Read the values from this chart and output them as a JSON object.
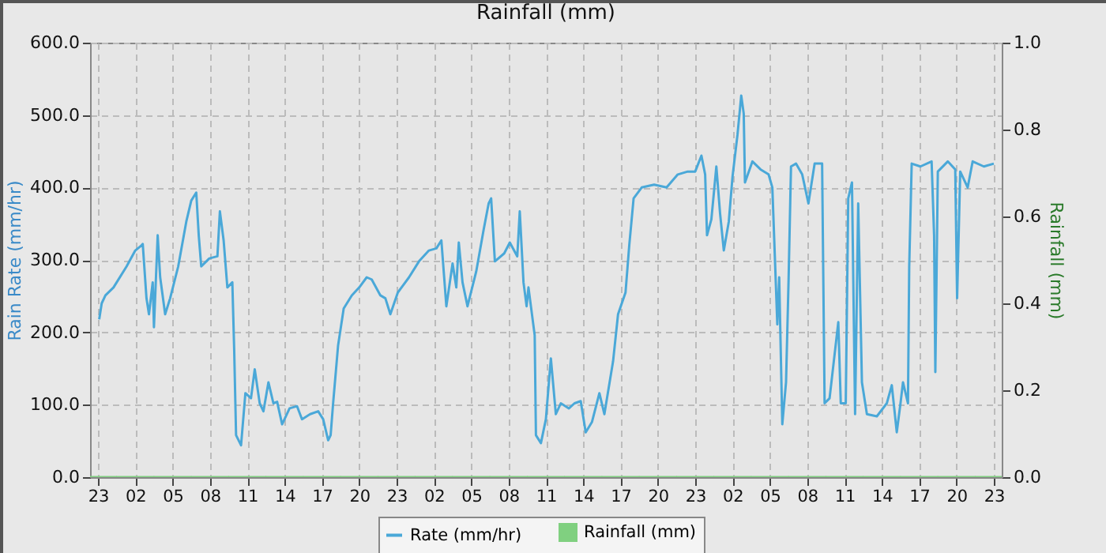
{
  "chart_data": {
    "type": "line",
    "title": "Rainfall (mm)",
    "ylabel": "Rain Rate (mm/hr)",
    "y2label": "Rainfall (mm)",
    "xlim": [
      "--01-01T23:00",
      "--01-04T23:00"
    ],
    "xticks": [
      {
        "value": "--01-01T23:00",
        "label": "23"
      },
      {
        "value": "--01-02T02:00",
        "label": "02"
      },
      {
        "value": "--01-02T05:00",
        "label": "05"
      },
      {
        "value": "--01-02T08:00",
        "label": "08"
      },
      {
        "value": "--01-02T11:00",
        "label": "11"
      },
      {
        "value": "--01-02T14:00",
        "label": "14"
      },
      {
        "value": "--01-02T17:00",
        "label": "17"
      },
      {
        "value": "--01-02T20:00",
        "label": "20"
      },
      {
        "value": "--01-02T23:00",
        "label": "23"
      },
      {
        "value": "--01-03T02:00",
        "label": "02"
      },
      {
        "value": "--01-03T05:00",
        "label": "05"
      },
      {
        "value": "--01-03T08:00",
        "label": "08"
      },
      {
        "value": "--01-03T11:00",
        "label": "11"
      },
      {
        "value": "--01-03T14:00",
        "label": "14"
      },
      {
        "value": "--01-03T17:00",
        "label": "17"
      },
      {
        "value": "--01-03T20:00",
        "label": "20"
      },
      {
        "value": "--01-03T23:00",
        "label": "23"
      },
      {
        "value": "--01-04T02:00",
        "label": "02"
      },
      {
        "value": "--01-04T05:00",
        "label": "05"
      },
      {
        "value": "--01-04T08:00",
        "label": "08"
      },
      {
        "value": "--01-04T11:00",
        "label": "11"
      },
      {
        "value": "--01-04T14:00",
        "label": "14"
      },
      {
        "value": "--01-04T17:00",
        "label": "17"
      },
      {
        "value": "--01-04T20:00",
        "label": "20"
      },
      {
        "value": "--01-04T23:00",
        "label": "23"
      }
    ],
    "ylim": [
      0,
      600
    ],
    "yticks": [
      {
        "value": 0,
        "label": "0.0"
      },
      {
        "value": 100,
        "label": "100.0"
      },
      {
        "value": 200,
        "label": "200.0"
      },
      {
        "value": 300,
        "label": "300.0"
      },
      {
        "value": 400,
        "label": "400.0"
      },
      {
        "value": 500,
        "label": "500.0"
      },
      {
        "value": 600,
        "label": "600.0"
      }
    ],
    "y2lim": [
      0,
      1
    ],
    "y2ticks": [
      {
        "value": 0,
        "label": "0.0"
      },
      {
        "value": 0.2,
        "label": "0.2"
      },
      {
        "value": 0.4,
        "label": "0.4"
      },
      {
        "value": 0.6,
        "label": "0.6"
      },
      {
        "value": 0.8,
        "label": "0.8"
      },
      {
        "value": 1,
        "label": "1.0"
      }
    ],
    "grid": true,
    "legend": "bottom",
    "marker": "none",
    "line_style": "solid",
    "series": [
      {
        "name": "Rate (mm/hr)",
        "color": "#4aa8d8",
        "x": [
          "--01-01T23:06",
          "--01-01T23:18",
          "--01-01T23:36",
          "--01-02T00:15",
          "--01-02T01:18",
          "--01-02T02:00",
          "--01-02T02:30",
          "--01-02T02:36",
          "--01-02T02:54",
          "--01-02T03:06",
          "--01-02T03:24",
          "--01-02T03:30",
          "--01-02T03:48",
          "--01-02T04:00",
          "--01-02T04:24",
          "--01-02T04:48",
          "--01-02T05:27",
          "--01-02T06:06",
          "--01-02T06:30",
          "--01-02T06:54",
          "--01-02T07:06",
          "--01-02T07:18",
          "--01-02T07:57",
          "--01-02T08:36",
          "--01-02T08:48",
          "--01-02T09:06",
          "--01-02T09:24",
          "--01-02T09:48",
          "--01-02T09:57",
          "--01-02T10:06",
          "--01-02T10:30",
          "--01-02T10:51",
          "--01-02T11:18",
          "--01-02T11:36",
          "--01-02T12:00",
          "--01-02T12:18",
          "--01-02T12:42",
          "--01-02T13:06",
          "--01-02T13:24",
          "--01-02T13:48",
          "--01-02T14:24",
          "--01-02T15:00",
          "--01-02T15:24",
          "--01-02T16:03",
          "--01-02T16:42",
          "--01-02T17:06",
          "--01-02T17:30",
          "--01-02T17:42",
          "--01-02T17:54",
          "--01-02T18:18",
          "--01-02T18:45",
          "--01-02T19:24",
          "--01-02T20:00",
          "--01-02T20:36",
          "--01-02T21:00",
          "--01-02T21:42",
          "--01-02T22:06",
          "--01-02T22:30",
          "--01-02T23:06",
          "--01-03T00:00",
          "--01-03T00:48",
          "--01-03T01:36",
          "--01-03T02:12",
          "--01-03T02:36",
          "--01-03T03:00",
          "--01-03T03:30",
          "--01-03T03:48",
          "--01-03T04:00",
          "--01-03T04:18",
          "--01-03T04:42",
          "--01-03T05:24",
          "--01-03T06:00",
          "--01-03T06:24",
          "--01-03T06:36",
          "--01-03T06:54",
          "--01-03T07:39",
          "--01-03T08:06",
          "--01-03T08:42",
          "--01-03T08:54",
          "--01-03T09:12",
          "--01-03T09:27",
          "--01-03T09:36",
          "--01-03T10:06",
          "--01-03T10:12",
          "--01-03T10:36",
          "--01-03T11:00",
          "--01-03T11:24",
          "--01-03T11:48",
          "--01-03T12:12",
          "--01-03T12:51",
          "--01-03T13:18",
          "--01-03T13:48",
          "--01-03T14:12",
          "--01-03T14:42",
          "--01-03T15:18",
          "--01-03T15:42",
          "--01-03T16:24",
          "--01-03T16:48",
          "--01-03T17:24",
          "--01-03T17:42",
          "--01-03T18:03",
          "--01-03T18:42",
          "--01-03T19:42",
          "--01-03T20:42",
          "--01-03T21:36",
          "--01-03T22:24",
          "--01-03T23:00",
          "--01-03T23:30",
          "--01-03T23:48",
          "--01-03T23:57",
          "--01-04T00:18",
          "--01-04T00:42",
          "--01-04T01:00",
          "--01-04T01:18",
          "--01-04T01:42",
          "--01-04T02:00",
          "--01-04T02:24",
          "--01-04T02:42",
          "--01-04T02:54",
          "--01-04T03:00",
          "--01-04T03:36",
          "--01-04T04:15",
          "--01-04T04:54",
          "--01-04T05:12",
          "--01-04T05:24",
          "--01-04T05:36",
          "--01-04T05:45",
          "--01-04T06:00",
          "--01-04T06:18",
          "--01-04T06:30",
          "--01-04T06:42",
          "--01-04T07:06",
          "--01-04T07:36",
          "--01-04T08:06",
          "--01-04T08:36",
          "--01-04T09:12",
          "--01-04T09:24",
          "--01-04T09:48",
          "--01-04T10:30",
          "--01-04T10:42",
          "--01-04T11:06",
          "--01-04T11:18",
          "--01-04T11:36",
          "--01-04T11:51",
          "--01-04T12:06",
          "--01-04T12:24",
          "--01-04T12:48",
          "--01-04T13:36",
          "--01-04T14:24",
          "--01-04T14:48",
          "--01-04T15:12",
          "--01-04T15:30",
          "--01-04T15:42",
          "--01-04T16:06",
          "--01-04T16:12",
          "--01-04T16:24",
          "--01-04T17:06",
          "--01-04T18:00",
          "--01-04T18:12",
          "--01-04T18:18",
          "--01-04T18:30",
          "--01-04T19:18",
          "--01-04T19:54",
          "--01-04T20:03",
          "--01-04T20:18",
          "--01-04T20:54",
          "--01-04T21:18",
          "--01-04T22:12",
          "--01-04T23:00"
        ],
        "values": [
          218,
          240,
          251,
          262,
          291,
          313,
          320,
          322,
          247,
          225,
          269,
          207,
          334,
          276,
          225,
          247,
          291,
          353,
          382,
          393,
          334,
          291,
          302,
          305,
          367,
          327,
          262,
          269,
          175,
          58,
          44,
          116,
          109,
          149,
          102,
          91,
          131,
          102,
          104,
          73,
          95,
          98,
          80,
          87,
          91,
          80,
          51,
          58,
          102,
          182,
          233,
          251,
          262,
          276,
          273,
          251,
          247,
          225,
          255,
          276,
          298,
          313,
          316,
          327,
          236,
          295,
          262,
          324,
          269,
          236,
          284,
          342,
          378,
          385,
          298,
          309,
          324,
          305,
          367,
          269,
          236,
          262,
          196,
          58,
          47,
          80,
          164,
          87,
          102,
          95,
          102,
          105,
          62,
          76,
          116,
          87,
          160,
          225,
          255,
          320,
          385,
          400,
          404,
          400,
          418,
          422,
          422,
          444,
          418,
          334,
          356,
          429,
          364,
          313,
          353,
          415,
          473,
          527,
          502,
          407,
          436,
          425,
          418,
          400,
          305,
          211,
          276,
          73,
          131,
          269,
          429,
          433,
          418,
          378,
          433,
          433,
          102,
          109,
          214,
          102,
          102,
          385,
          407,
          87,
          378,
          131,
          87,
          84,
          102,
          127,
          62,
          102,
          131,
          102,
          291,
          433,
          429,
          436,
          334,
          145,
          422,
          436,
          425,
          247,
          422,
          400,
          436,
          429,
          433
        ]
      },
      {
        "name": "Rainfall (mm)",
        "type": "bar",
        "axis": "y2",
        "color": "#80d080",
        "x": [
          "--01-01T23:00",
          "--01-02T02:00",
          "--01-02T05:00",
          "--01-02T08:00",
          "--01-02T11:00",
          "--01-02T14:00",
          "--01-02T17:00",
          "--01-02T20:00",
          "--01-02T23:00",
          "--01-03T02:00",
          "--01-03T05:00",
          "--01-03T08:00",
          "--01-03T11:00",
          "--01-03T14:00",
          "--01-03T17:00",
          "--01-03T20:00",
          "--01-03T23:00",
          "--01-04T02:00",
          "--01-04T05:00",
          "--01-04T08:00",
          "--01-04T11:00",
          "--01-04T14:00",
          "--01-04T17:00",
          "--01-04T20:00",
          "--01-04T23:00"
        ],
        "values": [
          0,
          0,
          0,
          0,
          0,
          0,
          0,
          0,
          0,
          0,
          0,
          0,
          0,
          0,
          0,
          0,
          0,
          0,
          0,
          0,
          0,
          0,
          0,
          0,
          0
        ]
      }
    ]
  }
}
